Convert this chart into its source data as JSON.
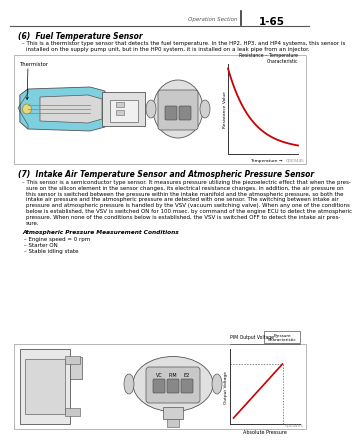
{
  "page_header_left": "Operation Section",
  "page_header_right": "1-65",
  "section6_title": "(6)  Fuel Temperature Sensor",
  "section6_bullet": "This is a thermistor type sensor that detects the fuel temperature. In the HP2, HP3, and HP4 systems, this sensor is\ninstalled on the supply pump unit, but in the HP0 system, it is installed on a leak pipe from an injector.",
  "graph1_xlabel": "Temperature →",
  "graph1_ylabel": "Resistance Value",
  "graph1_title": "Resistance – Temperature\nCharacteristic",
  "graph1_label_thermistor": "Thermistor",
  "graph1_code": "Q000445",
  "section7_title": "(7)  Intake Air Temperature Sensor and Atmospheric Pressure Sensor",
  "section7_bullet1": "This sensor is a semiconductor type sensor. It measures pressure utilizing the piezoelectric effect that when the pres-",
  "section7_bullet2": "sure on the silicon element in the sensor changes, its electrical resistance changes. In addition, the air pressure on",
  "section7_bullet3": "this sensor is switched between the pressure within the intake manifold and the atmospheric pressure, so both the",
  "section7_bullet4": "intake air pressure and the atmospheric pressure are detected with one sensor. The switching between intake air",
  "section7_bullet5": "pressure and atmospheric pressure is handled by the VSV (vacuum switching valve). When any one of the conditions",
  "section7_bullet6": "below is established, the VSV is switched ON for 100 msec. by command of the engine ECU to detect the atmospheric",
  "section7_bullet7": "pressure. When none of the conditions below is established, the VSV is switched OFF to detect the intake air pres-",
  "section7_bullet8": "sure.",
  "section7_conditions_title": "Atmospheric Pressure Measurement Conditions",
  "section7_conditions": [
    "Engine speed = 0 rpm",
    "Starter ON",
    "Stable idling state"
  ],
  "graph2_xlabel": "Absolute Pressure",
  "graph2_ylabel": "Output Voltage",
  "graph2_title": "PIM Output Voltage –",
  "graph2_box_label": "Pressure\nCharacteristic",
  "graph2_pins": [
    "VC",
    "PIM",
    "E2"
  ],
  "graph2_code": "Q000455",
  "bg_color": "#ffffff",
  "box_border_color": "#aaaaaa",
  "text_color": "#000000",
  "graph_line_color": "#cc0000",
  "cyan_fill": "#7ecfdf",
  "yellow_fill": "#e8d878",
  "gray_fill": "#c8c8c8",
  "light_gray": "#e8e8e8"
}
